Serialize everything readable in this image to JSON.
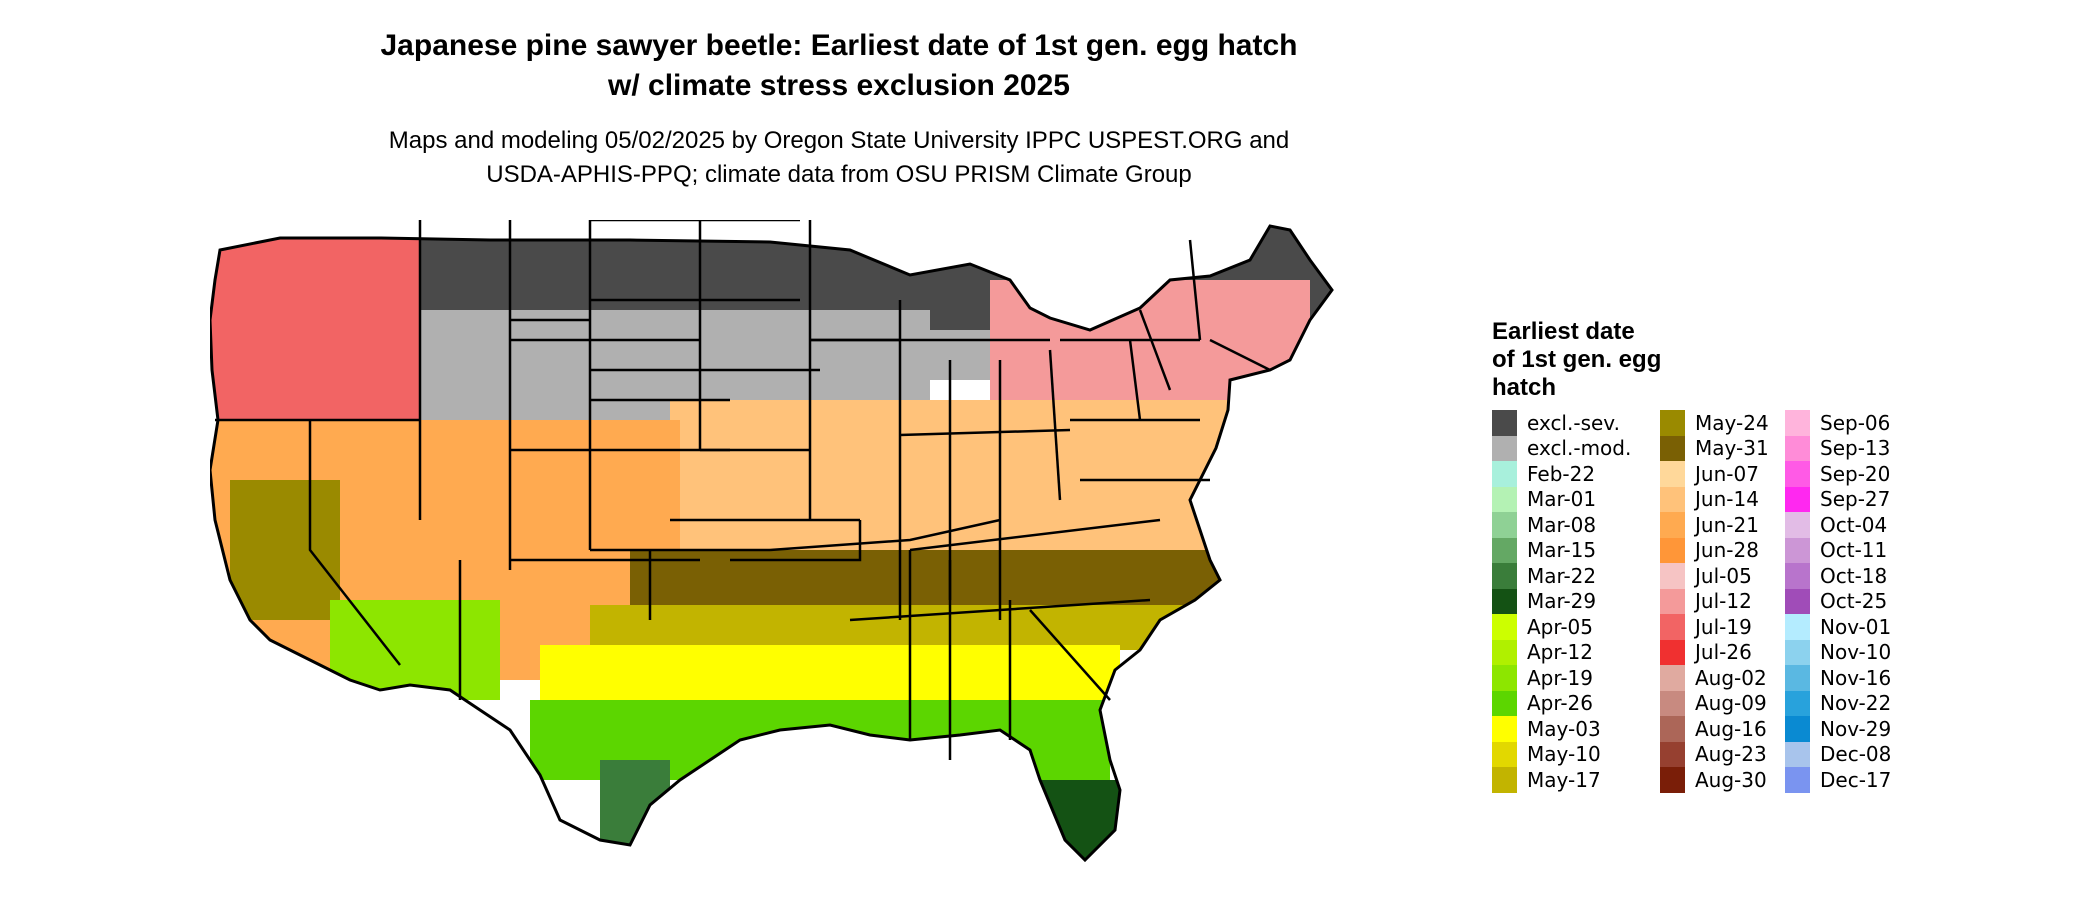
{
  "title_lines": [
    "Japanese pine sawyer beetle: Earliest date of 1st gen. egg hatch",
    "w/ climate stress exclusion 2025"
  ],
  "subtitle_lines": [
    "Maps and modeling 05/02/2025 by Oregon State University IPPC USPEST.ORG and",
    "USDA-APHIS-PPQ; climate data from OSU PRISM Climate Group"
  ],
  "legend": {
    "title_lines": [
      "Earliest date",
      "of 1st gen. egg",
      "hatch"
    ],
    "items": [
      {
        "label": "excl.-sev.",
        "color": "#4a4a4a"
      },
      {
        "label": "excl.-mod.",
        "color": "#b0b0b0"
      },
      {
        "label": "Feb-22",
        "color": "#a8f0dc"
      },
      {
        "label": "Mar-01",
        "color": "#b4f2b4"
      },
      {
        "label": "Mar-08",
        "color": "#8fd195"
      },
      {
        "label": "Mar-15",
        "color": "#64a864"
      },
      {
        "label": "Mar-22",
        "color": "#3a7d3a"
      },
      {
        "label": "Mar-29",
        "color": "#145214"
      },
      {
        "label": "Apr-05",
        "color": "#ccff00"
      },
      {
        "label": "Apr-12",
        "color": "#b0f000"
      },
      {
        "label": "Apr-19",
        "color": "#8de600"
      },
      {
        "label": "Apr-26",
        "color": "#5cd600"
      },
      {
        "label": "May-03",
        "color": "#ffff00"
      },
      {
        "label": "May-10",
        "color": "#e2d800"
      },
      {
        "label": "May-17",
        "color": "#c2b400"
      },
      {
        "label": "May-24",
        "color": "#9a8a00"
      },
      {
        "label": "May-31",
        "color": "#7a6004"
      },
      {
        "label": "Jun-07",
        "color": "#ffd89a"
      },
      {
        "label": "Jun-14",
        "color": "#ffc27a"
      },
      {
        "label": "Jun-21",
        "color": "#ffaa50"
      },
      {
        "label": "Jun-28",
        "color": "#ff9638"
      },
      {
        "label": "Jul-05",
        "color": "#f6c4c4"
      },
      {
        "label": "Jul-12",
        "color": "#f49a9a"
      },
      {
        "label": "Jul-19",
        "color": "#f26464"
      },
      {
        "label": "Jul-26",
        "color": "#f03030"
      },
      {
        "label": "Aug-02",
        "color": "#e0aaa0"
      },
      {
        "label": "Aug-09",
        "color": "#c88a80"
      },
      {
        "label": "Aug-16",
        "color": "#ac6658"
      },
      {
        "label": "Aug-23",
        "color": "#964030"
      },
      {
        "label": "Aug-30",
        "color": "#7a1e08"
      },
      {
        "label": "Sep-06",
        "color": "#ffb4dc"
      },
      {
        "label": "Sep-13",
        "color": "#ff8cd8"
      },
      {
        "label": "Sep-20",
        "color": "#ff5ae6"
      },
      {
        "label": "Sep-27",
        "color": "#ff28f0"
      },
      {
        "label": "Oct-04",
        "color": "#e2bce6"
      },
      {
        "label": "Oct-11",
        "color": "#cc96d6"
      },
      {
        "label": "Oct-18",
        "color": "#b874cc"
      },
      {
        "label": "Oct-25",
        "color": "#a04cb8"
      },
      {
        "label": "Nov-01",
        "color": "#b4ecff"
      },
      {
        "label": "Nov-10",
        "color": "#8cd2ee"
      },
      {
        "label": "Nov-16",
        "color": "#5ab8e2"
      },
      {
        "label": "Nov-22",
        "color": "#28a2dc"
      },
      {
        "label": "Nov-29",
        "color": "#0a8ad2"
      },
      {
        "label": "Dec-08",
        "color": "#a8c4ec"
      },
      {
        "label": "Dec-17",
        "color": "#7a94f0"
      }
    ]
  },
  "map_layers": [
    {
      "region": "northern-plains-midwest-north",
      "color": "#4a4a4a"
    },
    {
      "region": "northern-rockies-west",
      "color": "#4a4a4a"
    },
    {
      "region": "northeast",
      "color": "#4a4a4a"
    },
    {
      "region": "great-basin-central-plains",
      "color": "#b0b0b0"
    },
    {
      "region": "upper-midwest-band",
      "color": "#b0b0b0"
    },
    {
      "region": "pacific-northwest",
      "color": "#f26464"
    },
    {
      "region": "michigan-northeast",
      "color": "#f49a9a"
    },
    {
      "region": "midwest-mid-atlantic",
      "color": "#ffc27a"
    },
    {
      "region": "southwest",
      "color": "#ffaa50"
    },
    {
      "region": "upper-south",
      "color": "#7a6004"
    },
    {
      "region": "central-valley",
      "color": "#9a8a00"
    },
    {
      "region": "southern-band",
      "color": "#c2b400"
    },
    {
      "region": "gulf-band",
      "color": "#ffff00"
    },
    {
      "region": "gulf-coast",
      "color": "#5cd600"
    },
    {
      "region": "sonoran",
      "color": "#8de600"
    },
    {
      "region": "south-texas",
      "color": "#3a7d3a"
    },
    {
      "region": "south-florida",
      "color": "#145214"
    }
  ]
}
